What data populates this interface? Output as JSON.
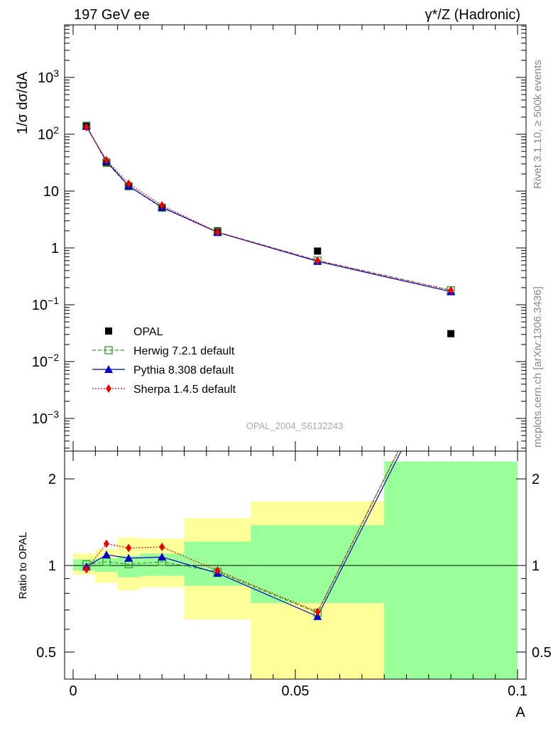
{
  "header": {
    "left": "197 GeV ee",
    "right": "γ*/Z (Hadronic)"
  },
  "side_labels": {
    "rivet": "Rivet 3.1.10, ≥ 500k events",
    "mcplots": "mcplots.cern.ch [arXiv:1306.3436]"
  },
  "watermark": "OPAL_2004_S6132243",
  "chart_data": [
    {
      "type": "scatter",
      "panel": "main",
      "title": "",
      "ylabel": "1/σ dσ/dA",
      "xlabel": "",
      "yscale": "log",
      "xlim": [
        -0.002,
        0.1
      ],
      "ylim": [
        0.0003,
        10000
      ],
      "ytick_labels": [
        "10^-3",
        "10^-2",
        "10^-1",
        "1",
        "10",
        "10^2",
        "10^3"
      ],
      "legend_position": "lower-left",
      "series": [
        {
          "name": "OPAL",
          "color": "#000000",
          "marker": "filled-square",
          "x": [
            0.003,
            0.0075,
            0.0125,
            0.02,
            0.0325,
            0.055,
            0.085
          ],
          "y": [
            140,
            31,
            12,
            5.0,
            2.0,
            0.88,
            0.031
          ]
        },
        {
          "name": "Herwig 7.2.1 default",
          "color": "#339933",
          "marker": "open-square",
          "line": "dashed",
          "x": [
            0.003,
            0.0075,
            0.0125,
            0.02,
            0.0325,
            0.055,
            0.085
          ],
          "y": [
            141,
            32,
            12.2,
            5.1,
            1.9,
            0.6,
            0.18
          ]
        },
        {
          "name": "Pythia 8.308 default",
          "color": "#0000cc",
          "marker": "triangle",
          "line": "solid",
          "x": [
            0.003,
            0.0075,
            0.0125,
            0.02,
            0.0325,
            0.055,
            0.085
          ],
          "y": [
            138,
            33.5,
            12.3,
            5.2,
            1.88,
            0.58,
            0.17
          ]
        },
        {
          "name": "Sherpa 1.4.5 default",
          "color": "#ee0000",
          "marker": "diamond",
          "line": "dotted",
          "x": [
            0.003,
            0.0075,
            0.0125,
            0.02,
            0.0325,
            0.055,
            0.085
          ],
          "y": [
            133,
            35,
            13.5,
            5.6,
            1.9,
            0.6,
            0.18
          ]
        }
      ]
    },
    {
      "type": "line",
      "panel": "ratio",
      "ylabel": "Ratio to OPAL",
      "xlabel": "A",
      "yscale": "log",
      "xlim": [
        -0.002,
        0.1
      ],
      "ylim": [
        0.35,
        2.3
      ],
      "xtick_labels": [
        "0",
        "0.05",
        "0.1"
      ],
      "ytick_labels": [
        "0.5",
        "1",
        "2"
      ],
      "reference_line": 1,
      "bands": [
        {
          "x0": 0.0,
          "x1": 0.005,
          "yellow": [
            0.93,
            1.1
          ],
          "green": [
            0.96,
            1.05
          ]
        },
        {
          "x0": 0.005,
          "x1": 0.01,
          "yellow": [
            0.87,
            1.14
          ],
          "green": [
            0.95,
            1.06
          ]
        },
        {
          "x0": 0.01,
          "x1": 0.015,
          "yellow": [
            0.82,
            1.25
          ],
          "green": [
            0.91,
            1.08
          ]
        },
        {
          "x0": 0.015,
          "x1": 0.025,
          "yellow": [
            0.84,
            1.24
          ],
          "green": [
            0.92,
            1.1
          ]
        },
        {
          "x0": 0.025,
          "x1": 0.04,
          "yellow": [
            0.65,
            1.46
          ],
          "green": [
            0.85,
            1.21
          ]
        },
        {
          "x0": 0.04,
          "x1": 0.07,
          "yellow": [
            0.35,
            1.67
          ],
          "green": [
            0.74,
            1.38
          ]
        },
        {
          "x0": 0.07,
          "x1": 0.1,
          "yellow": [
            0.35,
            2.3
          ],
          "green": [
            0.35,
            2.3
          ]
        }
      ],
      "series": [
        {
          "name": "Herwig 7.2.1 default",
          "color": "#339933",
          "marker": "open-square",
          "line": "dashed",
          "x": [
            0.003,
            0.0075,
            0.0125,
            0.02,
            0.0325,
            0.055,
            0.085
          ],
          "y": [
            1.01,
            1.03,
            1.01,
            1.03,
            0.95,
            0.685,
            5.8
          ]
        },
        {
          "name": "Pythia 8.308 default",
          "color": "#0000cc",
          "marker": "triangle",
          "line": "solid",
          "x": [
            0.003,
            0.0075,
            0.0125,
            0.02,
            0.0325,
            0.055,
            0.085
          ],
          "y": [
            0.99,
            1.09,
            1.06,
            1.07,
            0.94,
            0.665,
            5.5
          ]
        },
        {
          "name": "Sherpa 1.4.5 default",
          "color": "#ee0000",
          "marker": "diamond",
          "line": "dotted",
          "x": [
            0.003,
            0.0075,
            0.0125,
            0.02,
            0.0325,
            0.055,
            0.085
          ],
          "y": [
            0.97,
            1.19,
            1.15,
            1.16,
            0.96,
            0.69,
            5.8
          ]
        }
      ]
    }
  ]
}
